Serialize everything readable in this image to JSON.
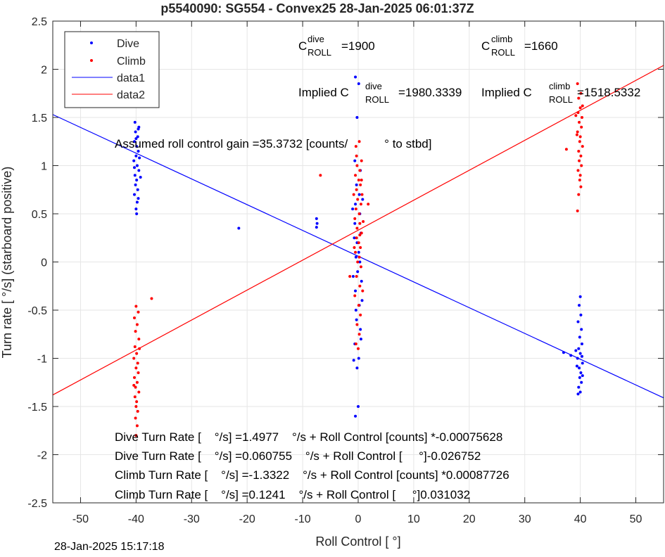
{
  "chart_data": {
    "type": "scatter",
    "title": "p5540090: SG554 - Convex25 28-Jan-2025 06:01:37Z",
    "xlabel": "Roll Control [   °]",
    "ylabel": "Turn rate [   °/s] (starboard positive)",
    "xlim": [
      -55,
      55
    ],
    "ylim": [
      -2.5,
      2.5
    ],
    "xticks": [
      -50,
      -40,
      -30,
      -20,
      -10,
      0,
      10,
      20,
      30,
      40,
      50
    ],
    "yticks": [
      -2.5,
      -2,
      -1.5,
      -1,
      -0.5,
      0,
      0.5,
      1,
      1.5,
      2,
      2.5
    ],
    "xtick_labels": [
      "-50",
      "-40",
      "-30",
      "-20",
      "-10",
      "0",
      "10",
      "20",
      "30",
      "40",
      "50"
    ],
    "ytick_labels": [
      "-2.5",
      "-2",
      "-1.5",
      "-1",
      "-0.5",
      "0",
      "0.5",
      "1",
      "1.5",
      "2",
      "2.5"
    ],
    "grid": true,
    "legend_position": "top-left",
    "legend": [
      "Dive",
      "Climb",
      "data1",
      "data2"
    ],
    "series": [
      {
        "name": "Dive",
        "color": "#0000ff",
        "marker": "dot",
        "points": [
          [
            -39.8,
            1.62
          ],
          [
            -40.2,
            1.45
          ],
          [
            -39.5,
            1.4
          ],
          [
            -40.1,
            1.35
          ],
          [
            -39.7,
            1.3
          ],
          [
            -40.3,
            1.25
          ],
          [
            -39.9,
            1.2
          ],
          [
            -39.6,
            1.15
          ],
          [
            -40.0,
            1.1
          ],
          [
            -40.4,
            1.05
          ],
          [
            -39.8,
            1.0
          ],
          [
            -39.5,
            0.95
          ],
          [
            -40.2,
            0.9
          ],
          [
            -39.2,
            0.88
          ],
          [
            -39.9,
            0.85
          ],
          [
            -40.1,
            0.8
          ],
          [
            -39.7,
            0.75
          ],
          [
            -40.3,
            0.7
          ],
          [
            -39.8,
            0.62
          ],
          [
            -40.0,
            0.55
          ],
          [
            -39.9,
            0.5
          ],
          [
            -39.6,
            1.38
          ],
          [
            -40.0,
            1.28
          ],
          [
            -39.4,
            1.08
          ],
          [
            -40.3,
            0.98
          ],
          [
            -39.6,
            0.66
          ],
          [
            -21.5,
            0.35
          ],
          [
            -7.5,
            0.45
          ],
          [
            -7.4,
            0.4
          ],
          [
            -7.5,
            0.36
          ],
          [
            -0.5,
            1.92
          ],
          [
            0.1,
            1.85
          ],
          [
            -0.2,
            1.5
          ],
          [
            -0.6,
            1.05
          ],
          [
            0.4,
            0.95
          ],
          [
            -0.3,
            0.8
          ],
          [
            0.2,
            0.7
          ],
          [
            -0.5,
            0.6
          ],
          [
            0.3,
            0.5
          ],
          [
            -0.6,
            0.4
          ],
          [
            0.5,
            0.3
          ],
          [
            -0.2,
            0.2
          ],
          [
            0.1,
            0.1
          ],
          [
            -0.4,
            0.05
          ],
          [
            0.3,
            0.0
          ],
          [
            -0.1,
            -0.1
          ],
          [
            0.6,
            -0.2
          ],
          [
            -0.5,
            -0.3
          ],
          [
            0.2,
            -0.45
          ],
          [
            -0.3,
            -0.6
          ],
          [
            0.4,
            -0.7
          ],
          [
            -0.6,
            -0.85
          ],
          [
            0.1,
            -1.0
          ],
          [
            -0.2,
            -1.1
          ],
          [
            0.0,
            -1.5
          ],
          [
            -0.5,
            -1.6
          ],
          [
            -0.8,
            -1.02
          ],
          [
            -1.0,
            0.55
          ],
          [
            0.7,
            -0.4
          ],
          [
            -0.9,
            -0.15
          ],
          [
            0.8,
            0.65
          ],
          [
            -0.7,
            0.25
          ],
          [
            0.5,
            -0.8
          ],
          [
            -0.4,
            -0.5
          ],
          [
            40.0,
            -0.36
          ],
          [
            39.8,
            -0.45
          ],
          [
            40.1,
            -0.55
          ],
          [
            39.6,
            -0.62
          ],
          [
            40.2,
            -0.7
          ],
          [
            39.9,
            -0.78
          ],
          [
            40.3,
            -0.85
          ],
          [
            39.7,
            -0.9
          ],
          [
            40.0,
            -0.95
          ],
          [
            39.5,
            -1.0
          ],
          [
            40.4,
            -1.05
          ],
          [
            39.8,
            -1.1
          ],
          [
            40.1,
            -1.15
          ],
          [
            39.9,
            -1.2
          ],
          [
            40.2,
            -1.25
          ],
          [
            39.7,
            -1.3
          ],
          [
            40.0,
            -1.35
          ],
          [
            39.6,
            -1.37
          ],
          [
            37.0,
            -0.94
          ],
          [
            38.3,
            -0.97
          ],
          [
            39.2,
            -0.92
          ],
          [
            40.3,
            -0.98
          ],
          [
            39.4,
            -1.08
          ],
          [
            40.4,
            -1.18
          ]
        ]
      },
      {
        "name": "Climb",
        "color": "#ff0000",
        "marker": "dot",
        "points": [
          [
            -40.0,
            -0.46
          ],
          [
            -39.6,
            -0.52
          ],
          [
            -40.3,
            -0.58
          ],
          [
            -39.8,
            -0.65
          ],
          [
            -40.1,
            -0.72
          ],
          [
            -39.5,
            -0.8
          ],
          [
            -40.2,
            -0.88
          ],
          [
            -39.9,
            -0.95
          ],
          [
            -40.4,
            -1.0
          ],
          [
            -39.7,
            -1.05
          ],
          [
            -40.0,
            -1.1
          ],
          [
            -39.6,
            -1.15
          ],
          [
            -40.3,
            -1.2
          ],
          [
            -39.8,
            -1.25
          ],
          [
            -40.1,
            -1.3
          ],
          [
            -39.5,
            -1.35
          ],
          [
            -40.2,
            -1.4
          ],
          [
            -39.9,
            -1.45
          ],
          [
            -40.0,
            -1.5
          ],
          [
            -39.7,
            -1.55
          ],
          [
            -40.1,
            -1.62
          ],
          [
            -39.8,
            -1.7
          ],
          [
            -40.0,
            -1.8
          ],
          [
            -37.2,
            -0.38
          ],
          [
            -39.4,
            -0.9
          ],
          [
            -40.4,
            -1.28
          ],
          [
            -6.8,
            0.9
          ],
          [
            1.8,
            0.6
          ],
          [
            0.2,
            1.25
          ],
          [
            -0.4,
            1.2
          ],
          [
            0.6,
            1.05
          ],
          [
            -0.2,
            1.0
          ],
          [
            0.3,
            0.95
          ],
          [
            -0.5,
            0.9
          ],
          [
            0.1,
            0.85
          ],
          [
            0.4,
            0.8
          ],
          [
            -0.3,
            0.75
          ],
          [
            0.7,
            0.7
          ],
          [
            -0.1,
            0.65
          ],
          [
            0.5,
            0.6
          ],
          [
            -0.4,
            0.55
          ],
          [
            0.2,
            0.5
          ],
          [
            -0.6,
            0.45
          ],
          [
            0.3,
            0.4
          ],
          [
            -0.2,
            0.35
          ],
          [
            0.6,
            0.3
          ],
          [
            -0.3,
            0.25
          ],
          [
            0.1,
            0.2
          ],
          [
            0.4,
            0.15
          ],
          [
            -0.5,
            0.1
          ],
          [
            0.2,
            0.05
          ],
          [
            -0.1,
            0.0
          ],
          [
            0.5,
            -0.05
          ],
          [
            -0.3,
            -0.15
          ],
          [
            0.3,
            -0.25
          ],
          [
            -0.6,
            -0.35
          ],
          [
            0.1,
            -0.45
          ],
          [
            0.4,
            -0.55
          ],
          [
            -0.2,
            -0.65
          ],
          [
            0.2,
            -0.75
          ],
          [
            -0.4,
            -0.85
          ],
          [
            0.0,
            -0.9
          ],
          [
            -0.8,
            0.7
          ],
          [
            0.9,
            0.42
          ],
          [
            -1.5,
            -0.15
          ],
          [
            0.8,
            -0.3
          ],
          [
            -0.7,
            0.15
          ],
          [
            0.6,
            0.85
          ],
          [
            -0.3,
            1.1
          ],
          [
            0.3,
            0.28
          ],
          [
            39.5,
            1.85
          ],
          [
            40.1,
            1.75
          ],
          [
            39.7,
            1.7
          ],
          [
            40.0,
            1.6
          ],
          [
            39.6,
            1.55
          ],
          [
            40.3,
            1.5
          ],
          [
            39.8,
            1.45
          ],
          [
            40.2,
            1.4
          ],
          [
            39.5,
            1.35
          ],
          [
            40.0,
            1.3
          ],
          [
            39.9,
            1.25
          ],
          [
            40.4,
            1.2
          ],
          [
            39.7,
            1.15
          ],
          [
            40.1,
            1.1
          ],
          [
            39.8,
            1.05
          ],
          [
            40.2,
            1.0
          ],
          [
            39.6,
            0.95
          ],
          [
            40.0,
            0.9
          ],
          [
            39.9,
            0.85
          ],
          [
            40.1,
            0.78
          ],
          [
            39.7,
            0.7
          ],
          [
            39.5,
            0.53
          ],
          [
            37.5,
            1.17
          ],
          [
            39.2,
            1.52
          ],
          [
            40.4,
            1.62
          ],
          [
            39.4,
            1.32
          ]
        ]
      },
      {
        "name": "data1",
        "color": "#0000ff",
        "type": "line",
        "x": [
          -55,
          55
        ],
        "y": [
          1.53,
          -1.41
        ]
      },
      {
        "name": "data2",
        "color": "#ff0000",
        "type": "line",
        "x": [
          -55,
          55
        ],
        "y": [
          -1.38,
          2.04
        ]
      }
    ],
    "annotations": {
      "c_dive_main": "C",
      "c_dive_sup": "dive",
      "c_dive_sub": "ROLL",
      "c_dive_value": "=1900",
      "c_climb_main": "C",
      "c_climb_sup": "climb",
      "c_climb_sub": "ROLL",
      "c_climb_value": "=1660",
      "implied_dive_main": "Implied C",
      "implied_dive_sup": "dive",
      "implied_dive_sub": "ROLL",
      "implied_dive_value": "=1980.3339",
      "implied_climb_main": "Implied C",
      "implied_climb_sup": "climb",
      "implied_climb_sub": "ROLL",
      "implied_climb_value": "=1518.5332",
      "gain": "Assumed roll control gain =35.3732 [counts/           ° to stbd]",
      "eq1": "Dive Turn Rate [    °/s] =1.4977    °/s + Roll Control [counts] *-0.00075628",
      "eq2": "Dive Turn Rate [    °/s] =0.060755    °/s + Roll Control [     °]-0.026752",
      "eq3": "Climb Turn Rate [    °/s] =-1.3322    °/s + Roll Control [counts] *0.00087726",
      "eq4": "Climb Turn Rate [    °/s] =0.1241    °/s + Roll Control [     °]0.031032"
    },
    "timestamp": "28-Jan-2025 15:17:18"
  }
}
